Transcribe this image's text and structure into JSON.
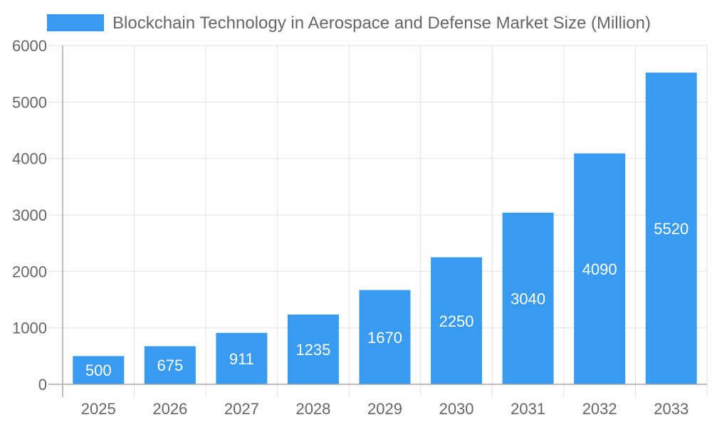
{
  "chart_data": {
    "type": "bar",
    "legend": {
      "label": "Blockchain Technology in Aerospace and Defense Market Size (Million)",
      "placement": "top"
    },
    "categories": [
      "2025",
      "2026",
      "2027",
      "2028",
      "2029",
      "2030",
      "2031",
      "2032",
      "2033"
    ],
    "series": [
      {
        "name": "Blockchain Technology in Aerospace and Defense Market Size (Million)",
        "values": [
          500,
          675,
          911,
          1235,
          1670,
          2250,
          3040,
          4090,
          5520
        ]
      }
    ],
    "ylim": [
      0,
      6000
    ],
    "yticks": [
      "0",
      "1000",
      "2000",
      "3000",
      "4000",
      "5000",
      "6000"
    ],
    "grid": true,
    "data_labels": true,
    "colors": {
      "bar": "#389BF0",
      "grid": "#e1e1e1",
      "axis": "#a9a9a9",
      "text": "#666666",
      "label": "#ffffff"
    }
  }
}
